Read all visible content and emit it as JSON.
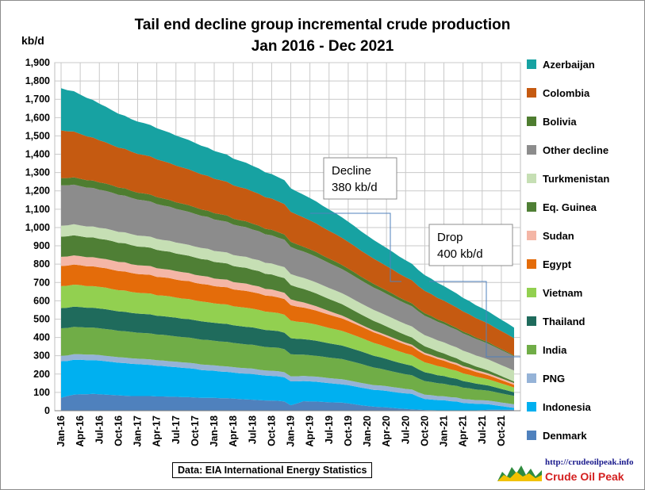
{
  "title": "Tail end decline group incremental crude production",
  "subtitle": "Jan 2016 - Dec 2021",
  "unit_label": "kb/d",
  "source_note": "Data: EIA International Energy Statistics",
  "website": "http://crudeoilpeak.info",
  "logo_text": "Crude Oil Peak",
  "annotations": [
    {
      "line1": "Decline",
      "line2": "380 kb/d"
    },
    {
      "line1": "Drop",
      "line2": "400 kb/d"
    }
  ],
  "colors": {
    "Denmark": "#4f81bd",
    "Indonesia": "#00b0f0",
    "PNG": "#95b3d7",
    "India": "#70ad47",
    "Thailand": "#1f6b5c",
    "Vietnam": "#92d050",
    "Egypt": "#e46c0a",
    "Sudan": "#f4b6a6",
    "Eq. Guinea": "#4f7f35",
    "Turkmenistan": "#c6dfb4",
    "Other decline": "#8c8c8c",
    "Bolivia": "#4e7d30",
    "Colombia": "#c55a11",
    "Azerbaijan": "#17a2a2",
    "gridline": "#c9c9c9",
    "annotation_line": "#4f81bd"
  },
  "chart_data": {
    "type": "area",
    "stacked": true,
    "title": "Tail end decline group incremental crude production",
    "subtitle": "Jan 2016 - Dec 2021",
    "ylabel": "kb/d",
    "ylim": [
      0,
      1900
    ],
    "ytick_step": 100,
    "grid": true,
    "legend_position": "right",
    "x_start": "Jan-2016",
    "x_end": "Dec-2021",
    "frequency": "monthly",
    "x_tick_labels": [
      "Jan-16",
      "Apr-16",
      "Jul-16",
      "Oct-16",
      "Jan-17",
      "Apr-17",
      "Jul-17",
      "Oct-17",
      "Jan-18",
      "Apr-18",
      "Jul-18",
      "Oct-18",
      "Jan-19",
      "Apr-19",
      "Jul-19",
      "Oct-19",
      "Jan-20",
      "Apr-20",
      "Jul-20",
      "Oct-20",
      "Jan-21",
      "Apr-21",
      "Jul-21",
      "Oct-21"
    ],
    "series": [
      {
        "name": "Denmark",
        "values": [
          70,
          80,
          88,
          90,
          90,
          92,
          90,
          88,
          86,
          84,
          82,
          80,
          80,
          80,
          80,
          78,
          78,
          76,
          76,
          74,
          74,
          72,
          70,
          70,
          70,
          68,
          68,
          66,
          64,
          62,
          60,
          58,
          56,
          55,
          54,
          50,
          30,
          40,
          52,
          50,
          50,
          48,
          46,
          45,
          44,
          40,
          35,
          30,
          26,
          22,
          20,
          18,
          15,
          12,
          10,
          8,
          6,
          4,
          3,
          2,
          2,
          2,
          2,
          2,
          2,
          2,
          3,
          5,
          5,
          5,
          5,
          5
        ]
      },
      {
        "name": "Indonesia",
        "values": [
          200,
          192,
          190,
          188,
          186,
          184,
          184,
          182,
          180,
          178,
          178,
          176,
          174,
          172,
          170,
          168,
          166,
          164,
          162,
          160,
          158,
          156,
          152,
          150,
          148,
          146,
          144,
          142,
          140,
          140,
          140,
          138,
          136,
          135,
          134,
          132,
          130,
          120,
          110,
          110,
          108,
          106,
          104,
          102,
          100,
          100,
          98,
          96,
          94,
          92,
          92,
          90,
          88,
          86,
          85,
          84,
          70,
          60,
          58,
          56,
          55,
          50,
          48,
          40,
          38,
          36,
          34,
          30,
          25,
          20,
          15,
          10
        ]
      },
      {
        "name": "PNG",
        "values": [
          30,
          30,
          30,
          30,
          30,
          30,
          30,
          30,
          30,
          30,
          30,
          30,
          30,
          30,
          30,
          30,
          30,
          30,
          30,
          30,
          30,
          30,
          30,
          30,
          30,
          30,
          30,
          30,
          30,
          30,
          30,
          28,
          28,
          28,
          28,
          28,
          28,
          28,
          28,
          28,
          28,
          28,
          28,
          28,
          28,
          26,
          26,
          26,
          26,
          26,
          26,
          26,
          26,
          26,
          24,
          24,
          24,
          24,
          24,
          22,
          22,
          22,
          22,
          22,
          22,
          20,
          20,
          20,
          20,
          20,
          20,
          20
        ]
      },
      {
        "name": "India",
        "values": [
          150,
          150,
          150,
          148,
          148,
          148,
          146,
          146,
          146,
          144,
          144,
          144,
          142,
          142,
          142,
          140,
          140,
          140,
          138,
          138,
          138,
          136,
          136,
          136,
          134,
          134,
          134,
          132,
          132,
          130,
          130,
          130,
          128,
          128,
          128,
          126,
          120,
          118,
          116,
          115,
          114,
          113,
          112,
          111,
          110,
          108,
          106,
          104,
          100,
          96,
          92,
          88,
          85,
          82,
          80,
          78,
          76,
          74,
          72,
          70,
          68,
          66,
          64,
          62,
          60,
          58,
          56,
          54,
          52,
          50,
          48,
          46
        ]
      },
      {
        "name": "Thailand",
        "values": [
          110,
          110,
          110,
          110,
          108,
          108,
          108,
          108,
          106,
          106,
          106,
          104,
          104,
          104,
          104,
          102,
          102,
          102,
          102,
          100,
          100,
          100,
          100,
          98,
          98,
          98,
          98,
          96,
          96,
          96,
          95,
          94,
          93,
          92,
          91,
          90,
          88,
          86,
          85,
          84,
          82,
          80,
          78,
          76,
          74,
          72,
          70,
          68,
          66,
          64,
          62,
          60,
          58,
          56,
          54,
          52,
          50,
          48,
          46,
          44,
          42,
          40,
          38,
          36,
          34,
          32,
          30,
          28,
          26,
          24,
          22,
          20
        ]
      },
      {
        "name": "Vietnam",
        "values": [
          120,
          120,
          120,
          120,
          118,
          118,
          118,
          118,
          116,
          116,
          116,
          114,
          114,
          114,
          114,
          112,
          112,
          112,
          110,
          110,
          110,
          108,
          108,
          108,
          106,
          106,
          106,
          104,
          104,
          104,
          102,
          102,
          100,
          100,
          98,
          98,
          96,
          94,
          92,
          90,
          88,
          86,
          84,
          82,
          80,
          78,
          76,
          74,
          72,
          70,
          68,
          66,
          64,
          62,
          60,
          58,
          56,
          54,
          52,
          50,
          48,
          46,
          44,
          42,
          40,
          38,
          36,
          34,
          32,
          30,
          28,
          26
        ]
      },
      {
        "name": "Egypt",
        "values": [
          110,
          110,
          110,
          108,
          108,
          108,
          106,
          106,
          106,
          104,
          104,
          104,
          102,
          102,
          102,
          100,
          100,
          100,
          98,
          98,
          98,
          96,
          96,
          96,
          94,
          94,
          94,
          92,
          92,
          92,
          90,
          90,
          88,
          88,
          86,
          86,
          84,
          82,
          80,
          78,
          76,
          74,
          72,
          70,
          68,
          66,
          64,
          62,
          60,
          58,
          56,
          54,
          52,
          50,
          48,
          46,
          44,
          42,
          40,
          38,
          36,
          34,
          32,
          30,
          28,
          26,
          24,
          22,
          20,
          18,
          16,
          14
        ]
      },
      {
        "name": "Sudan",
        "values": [
          50,
          50,
          50,
          50,
          50,
          50,
          50,
          50,
          50,
          50,
          50,
          48,
          48,
          48,
          48,
          48,
          46,
          46,
          46,
          46,
          44,
          44,
          44,
          44,
          42,
          42,
          42,
          40,
          40,
          40,
          38,
          38,
          36,
          36,
          34,
          34,
          32,
          30,
          28,
          26,
          24,
          22,
          20,
          18,
          16,
          14,
          12,
          10,
          10,
          10,
          10,
          10,
          10,
          10,
          10,
          10,
          10,
          10,
          10,
          10,
          10,
          10,
          10,
          10,
          10,
          10,
          10,
          10,
          10,
          10,
          10,
          10
        ]
      },
      {
        "name": "Eq. Guinea",
        "values": [
          110,
          110,
          110,
          108,
          108,
          108,
          106,
          106,
          106,
          104,
          104,
          104,
          102,
          102,
          100,
          100,
          98,
          98,
          96,
          96,
          94,
          94,
          92,
          92,
          90,
          90,
          88,
          88,
          86,
          86,
          84,
          84,
          82,
          82,
          80,
          80,
          78,
          76,
          74,
          72,
          70,
          68,
          66,
          64,
          62,
          60,
          58,
          56,
          54,
          52,
          50,
          48,
          46,
          44,
          42,
          40,
          38,
          36,
          34,
          32,
          30,
          28,
          26,
          24,
          22,
          20,
          18,
          16,
          14,
          12,
          10,
          8
        ]
      },
      {
        "name": "Turkmenistan",
        "values": [
          60,
          60,
          60,
          60,
          60,
          60,
          60,
          60,
          60,
          60,
          60,
          60,
          60,
          60,
          60,
          60,
          60,
          60,
          60,
          60,
          60,
          60,
          60,
          60,
          60,
          60,
          60,
          60,
          60,
          60,
          60,
          60,
          60,
          60,
          60,
          60,
          60,
          60,
          60,
          60,
          60,
          60,
          60,
          60,
          60,
          60,
          60,
          60,
          60,
          60,
          60,
          60,
          60,
          60,
          60,
          60,
          60,
          60,
          60,
          60,
          60,
          60,
          60,
          60,
          60,
          60,
          60,
          60,
          60,
          60,
          60,
          60
        ]
      },
      {
        "name": "Other decline",
        "values": [
          220,
          218,
          216,
          214,
          212,
          210,
          208,
          206,
          204,
          202,
          200,
          198,
          196,
          194,
          192,
          190,
          188,
          186,
          184,
          182,
          180,
          178,
          176,
          174,
          172,
          170,
          168,
          166,
          164,
          162,
          160,
          158,
          156,
          154,
          152,
          150,
          148,
          146,
          144,
          142,
          140,
          138,
          136,
          134,
          132,
          130,
          128,
          126,
          124,
          122,
          120,
          118,
          116,
          114,
          112,
          110,
          108,
          106,
          104,
          102,
          100,
          98,
          96,
          94,
          92,
          90,
          88,
          86,
          84,
          82,
          80,
          78
        ]
      },
      {
        "name": "Bolivia",
        "values": [
          40,
          40,
          40,
          40,
          40,
          40,
          40,
          40,
          40,
          40,
          40,
          38,
          38,
          38,
          38,
          38,
          38,
          36,
          36,
          36,
          36,
          36,
          34,
          34,
          34,
          34,
          34,
          32,
          32,
          32,
          32,
          30,
          30,
          30,
          30,
          28,
          28,
          28,
          26,
          26,
          26,
          24,
          24,
          24,
          22,
          22,
          22,
          20,
          20,
          20,
          18,
          18,
          18,
          16,
          16,
          16,
          14,
          14,
          14,
          12,
          12,
          12,
          10,
          10,
          10,
          8,
          8,
          8,
          6,
          6,
          6,
          4
        ]
      },
      {
        "name": "Colombia",
        "values": [
          260,
          255,
          250,
          245,
          240,
          235,
          230,
          225,
          220,
          218,
          216,
          214,
          212,
          210,
          208,
          206,
          204,
          202,
          200,
          198,
          196,
          194,
          192,
          190,
          188,
          186,
          184,
          182,
          180,
          178,
          176,
          174,
          172,
          170,
          168,
          166,
          164,
          162,
          160,
          158,
          156,
          154,
          152,
          150,
          148,
          146,
          144,
          142,
          140,
          138,
          136,
          134,
          132,
          130,
          128,
          126,
          124,
          122,
          120,
          118,
          116,
          114,
          112,
          110,
          108,
          106,
          104,
          102,
          100,
          98,
          96,
          94
        ]
      },
      {
        "name": "Azerbaijan",
        "values": [
          230,
          225,
          220,
          215,
          210,
          205,
          200,
          195,
          190,
          185,
          180,
          178,
          176,
          174,
          172,
          170,
          168,
          166,
          164,
          162,
          160,
          158,
          156,
          154,
          152,
          150,
          148,
          146,
          144,
          142,
          140,
          138,
          136,
          134,
          132,
          130,
          128,
          126,
          124,
          122,
          120,
          118,
          116,
          114,
          112,
          110,
          108,
          106,
          104,
          102,
          100,
          98,
          96,
          94,
          92,
          90,
          88,
          86,
          84,
          82,
          80,
          78,
          76,
          74,
          72,
          70,
          68,
          66,
          64,
          62,
          60,
          58
        ]
      }
    ]
  }
}
